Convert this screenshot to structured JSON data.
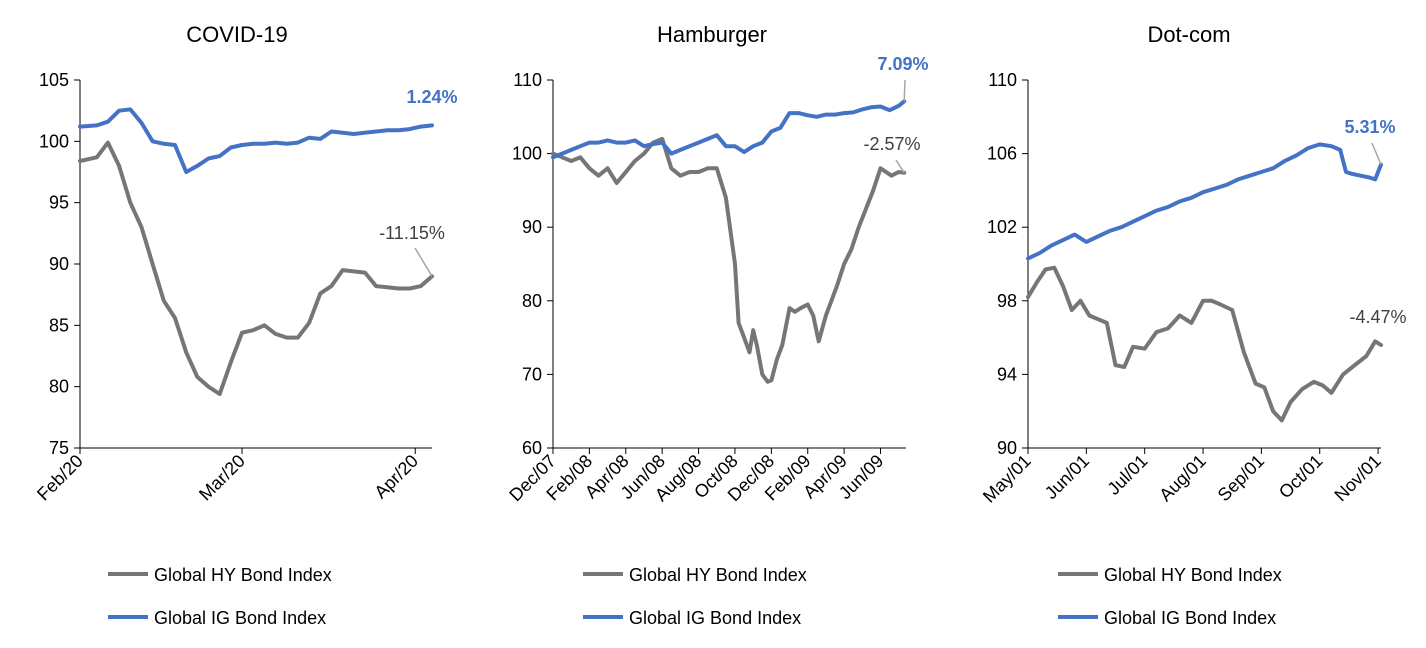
{
  "colors": {
    "hy": "#767676",
    "ig": "#4472C4",
    "axis": "#000000",
    "annot_hy": "#404040",
    "annot_ig": "#4472C4"
  },
  "chart_data": [
    {
      "type": "line",
      "title": "COVID-19",
      "x_ticks": [
        "Feb/20",
        "Mar/20",
        "Apr/20"
      ],
      "x_tick_pos": [
        0,
        29,
        60
      ],
      "x_range": [
        0,
        63
      ],
      "y_ticks": [
        "75",
        "80",
        "85",
        "90",
        "95",
        "100",
        "105"
      ],
      "ylim": [
        75,
        105
      ],
      "legend_position": "bottom",
      "series": [
        {
          "name": "Global HY Bond Index",
          "key": "hy",
          "x": [
            0,
            3,
            5,
            7,
            9,
            11,
            13,
            15,
            17,
            19,
            21,
            23,
            25,
            27,
            29,
            31,
            33,
            35,
            37,
            39,
            41,
            43,
            45,
            47,
            49,
            51,
            53,
            55,
            57,
            59,
            61,
            63
          ],
          "values": [
            98.4,
            98.7,
            99.9,
            98.0,
            95.0,
            93.0,
            90.0,
            87.0,
            85.6,
            82.8,
            80.8,
            80.0,
            79.4,
            82.0,
            84.4,
            84.6,
            85.0,
            84.3,
            84.0,
            84.0,
            85.2,
            87.6,
            88.2,
            89.5,
            89.4,
            89.3,
            88.2,
            88.1,
            88.0,
            88.0,
            88.2,
            89.0
          ]
        },
        {
          "name": "Global IG Bond Index",
          "key": "ig",
          "x": [
            0,
            3,
            5,
            7,
            9,
            11,
            13,
            15,
            17,
            19,
            21,
            23,
            25,
            27,
            29,
            31,
            33,
            35,
            37,
            39,
            41,
            43,
            45,
            47,
            49,
            51,
            53,
            55,
            57,
            59,
            61,
            63
          ],
          "values": [
            101.2,
            101.3,
            101.6,
            102.5,
            102.6,
            101.5,
            100.0,
            99.8,
            99.7,
            97.5,
            98.0,
            98.6,
            98.8,
            99.5,
            99.7,
            99.8,
            99.8,
            99.9,
            99.8,
            99.9,
            100.3,
            100.2,
            100.8,
            100.7,
            100.6,
            100.7,
            100.8,
            100.9,
            100.9,
            101.0,
            101.2,
            101.3
          ]
        }
      ],
      "annotations": [
        {
          "text": "-11.15%",
          "key": "hy"
        },
        {
          "text": "1.24%",
          "key": "ig"
        }
      ]
    },
    {
      "type": "line",
      "title": "Hamburger",
      "x_ticks": [
        "Dec/07",
        "Feb/08",
        "Apr/08",
        "Jun/08",
        "Aug/08",
        "Oct/08",
        "Dec/08",
        "Feb/09",
        "Apr/09",
        "Jun/09"
      ],
      "x_tick_pos": [
        0,
        2,
        4,
        6,
        8,
        10,
        12,
        14,
        16,
        18
      ],
      "x_range": [
        0,
        19.4
      ],
      "y_ticks": [
        "60",
        "70",
        "80",
        "90",
        "100",
        "110"
      ],
      "ylim": [
        60,
        110
      ],
      "legend_position": "bottom",
      "series": [
        {
          "name": "Global HY Bond Index",
          "key": "hy",
          "x": [
            0,
            0.5,
            1,
            1.5,
            2,
            2.5,
            3,
            3.5,
            4,
            4.5,
            5,
            5.5,
            6,
            6.5,
            7,
            7.5,
            8,
            8.5,
            9,
            9.5,
            10,
            10.2,
            10.5,
            10.8,
            11,
            11.2,
            11.5,
            11.8,
            12,
            12.3,
            12.6,
            13,
            13.3,
            13.6,
            14,
            14.3,
            14.6,
            15,
            15.3,
            15.6,
            16,
            16.4,
            16.8,
            17.2,
            17.6,
            18,
            18.3,
            18.6,
            19,
            19.3
          ],
          "values": [
            100,
            99.5,
            99,
            99.5,
            98,
            97,
            98,
            96,
            97.5,
            99,
            100,
            101.5,
            102,
            98,
            97,
            97.5,
            97.5,
            98,
            98,
            94,
            85,
            77,
            75,
            73,
            76,
            74,
            70,
            69,
            69.2,
            72,
            74,
            79,
            78.5,
            79,
            79.5,
            78,
            74.5,
            78,
            80,
            82,
            85,
            87,
            90,
            92.5,
            95,
            98,
            97.5,
            97,
            97.5,
            97.4
          ]
        },
        {
          "name": "Global IG Bond Index",
          "key": "ig",
          "x": [
            0,
            0.5,
            1,
            1.5,
            2,
            2.5,
            3,
            3.5,
            4,
            4.5,
            5,
            5.5,
            6,
            6.5,
            7,
            7.5,
            8,
            8.5,
            9,
            9.5,
            10,
            10.5,
            11,
            11.5,
            12,
            12.5,
            13,
            13.5,
            14,
            14.5,
            15,
            15.5,
            16,
            16.5,
            17,
            17.5,
            18,
            18.5,
            19,
            19.3
          ],
          "values": [
            99.5,
            100,
            100.5,
            101,
            101.5,
            101.5,
            101.8,
            101.5,
            101.5,
            101.8,
            101,
            101.3,
            101.5,
            100,
            100.5,
            101,
            101.5,
            102,
            102.5,
            101,
            101,
            100.2,
            101,
            101.5,
            103,
            103.5,
            105.5,
            105.5,
            105.2,
            105,
            105.3,
            105.3,
            105.5,
            105.6,
            106,
            106.3,
            106.4,
            105.9,
            106.5,
            107.1
          ]
        }
      ],
      "annotations": [
        {
          "text": "-2.57%",
          "key": "hy"
        },
        {
          "text": "7.09%",
          "key": "ig"
        }
      ]
    },
    {
      "type": "line",
      "title": "Dot-com",
      "x_ticks": [
        "May/01",
        "Jun/01",
        "Jul/01",
        "Aug/01",
        "Sep/01",
        "Oct/01",
        "Nov/01"
      ],
      "x_tick_pos": [
        0,
        1,
        2,
        3,
        4,
        5,
        6
      ],
      "x_range": [
        0,
        6.05
      ],
      "y_ticks": [
        "90",
        "94",
        "98",
        "102",
        "106",
        "110"
      ],
      "ylim": [
        90,
        110
      ],
      "legend_position": "bottom",
      "series": [
        {
          "name": "Global HY Bond Index",
          "key": "hy",
          "x": [
            0,
            0.15,
            0.3,
            0.45,
            0.6,
            0.75,
            0.9,
            1.05,
            1.2,
            1.35,
            1.5,
            1.65,
            1.8,
            2.0,
            2.2,
            2.4,
            2.6,
            2.8,
            3.0,
            3.15,
            3.3,
            3.5,
            3.7,
            3.9,
            4.05,
            4.2,
            4.35,
            4.5,
            4.7,
            4.9,
            5.05,
            5.2,
            5.4,
            5.6,
            5.8,
            5.95,
            6.05
          ],
          "values": [
            98.2,
            99.0,
            99.7,
            99.8,
            98.8,
            97.5,
            98.0,
            97.2,
            97.0,
            96.8,
            94.5,
            94.4,
            95.5,
            95.4,
            96.3,
            96.5,
            97.2,
            96.8,
            98.0,
            98.0,
            97.8,
            97.5,
            95.2,
            93.5,
            93.3,
            92.0,
            91.5,
            92.5,
            93.2,
            93.6,
            93.4,
            93.0,
            94.0,
            94.5,
            95.0,
            95.8,
            95.6
          ]
        },
        {
          "name": "Global IG Bond Index",
          "key": "ig",
          "x": [
            0,
            0.2,
            0.4,
            0.6,
            0.8,
            1.0,
            1.2,
            1.4,
            1.6,
            1.8,
            2.0,
            2.2,
            2.4,
            2.6,
            2.8,
            3.0,
            3.2,
            3.4,
            3.6,
            3.8,
            4.0,
            4.2,
            4.4,
            4.6,
            4.8,
            5.0,
            5.2,
            5.35,
            5.45,
            5.55,
            5.7,
            5.85,
            5.95,
            6.05
          ],
          "values": [
            100.3,
            100.6,
            101.0,
            101.3,
            101.6,
            101.2,
            101.5,
            101.8,
            102.0,
            102.3,
            102.6,
            102.9,
            103.1,
            103.4,
            103.6,
            103.9,
            104.1,
            104.3,
            104.6,
            104.8,
            105.0,
            105.2,
            105.6,
            105.9,
            106.3,
            106.5,
            106.4,
            106.2,
            105.0,
            104.9,
            104.8,
            104.7,
            104.6,
            105.4
          ]
        }
      ],
      "annotations": [
        {
          "text": "-4.47%",
          "key": "hy"
        },
        {
          "text": "5.31%",
          "key": "ig"
        }
      ]
    }
  ]
}
